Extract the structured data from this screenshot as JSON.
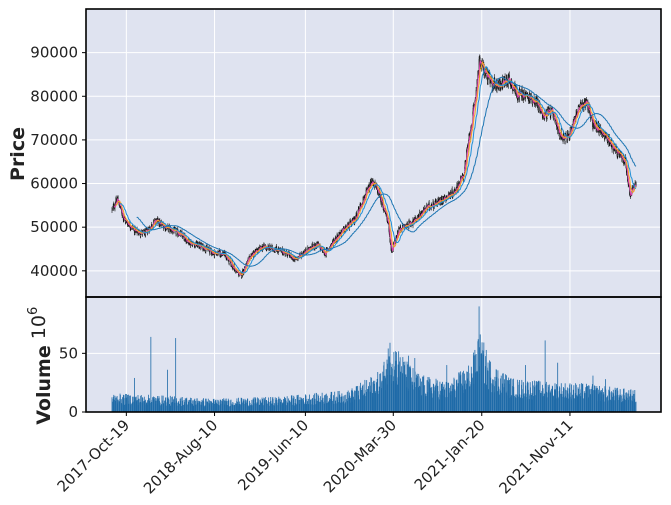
{
  "chart_data": [
    {
      "type": "candlestick",
      "panel": "price",
      "ylabel": "Price",
      "ylim": [
        34000,
        100000
      ],
      "yticks": [
        40000,
        50000,
        60000,
        70000,
        80000,
        90000
      ],
      "x_start": "2017-09-01",
      "x_end": "2022-06-20",
      "xticks": [
        "2017-Oct-19",
        "2018-Aug-10",
        "2019-Jun-10",
        "2020-Mar-30",
        "2021-Jan-20",
        "2021-Nov-11"
      ],
      "grid": true,
      "background": "#dfe3f0",
      "colors": {
        "up": "#ffffff",
        "down": "#111111",
        "ma_short": "#1f8fd6",
        "ma_mid": "#f6a623",
        "ma_fast": "#e63fb0",
        "ma_long": "#1f77b4"
      },
      "trend_points": [
        [
          "2017-09-01",
          54000
        ],
        [
          "2017-09-20",
          56500
        ],
        [
          "2017-10-10",
          52000
        ],
        [
          "2017-11-20",
          49000
        ],
        [
          "2017-12-20",
          48500
        ],
        [
          "2018-01-25",
          51500
        ],
        [
          "2018-03-01",
          50000
        ],
        [
          "2018-04-15",
          48500
        ],
        [
          "2018-05-20",
          46500
        ],
        [
          "2018-07-01",
          45500
        ],
        [
          "2018-08-10",
          44000
        ],
        [
          "2018-09-10",
          44000
        ],
        [
          "2018-10-20",
          40000
        ],
        [
          "2018-11-05",
          38800
        ],
        [
          "2018-12-10",
          43500
        ],
        [
          "2019-01-20",
          45500
        ],
        [
          "2019-03-01",
          45000
        ],
        [
          "2019-04-10",
          44000
        ],
        [
          "2019-05-05",
          42500
        ],
        [
          "2019-06-10",
          44500
        ],
        [
          "2019-07-20",
          46000
        ],
        [
          "2019-08-15",
          44000
        ],
        [
          "2019-09-20",
          47500
        ],
        [
          "2019-10-25",
          50000
        ],
        [
          "2019-11-20",
          51500
        ],
        [
          "2019-12-15",
          55500
        ],
        [
          "2020-01-20",
          60500
        ],
        [
          "2020-02-10",
          58000
        ],
        [
          "2020-03-10",
          52000
        ],
        [
          "2020-03-23",
          44500
        ],
        [
          "2020-04-20",
          49500
        ],
        [
          "2020-06-10",
          51500
        ],
        [
          "2020-07-20",
          54500
        ],
        [
          "2020-09-01",
          56000
        ],
        [
          "2020-10-20",
          58000
        ],
        [
          "2020-11-20",
          62000
        ],
        [
          "2020-12-10",
          71000
        ],
        [
          "2020-12-28",
          78500
        ],
        [
          "2021-01-11",
          88000
        ],
        [
          "2021-01-25",
          86500
        ],
        [
          "2021-02-20",
          83000
        ],
        [
          "2021-03-20",
          82500
        ],
        [
          "2021-04-20",
          84000
        ],
        [
          "2021-05-20",
          80500
        ],
        [
          "2021-06-20",
          80000
        ],
        [
          "2021-07-20",
          79000
        ],
        [
          "2021-08-15",
          75500
        ],
        [
          "2021-09-10",
          76500
        ],
        [
          "2021-10-10",
          71000
        ],
        [
          "2021-11-05",
          70500
        ],
        [
          "2021-12-05",
          76500
        ],
        [
          "2022-01-05",
          79000
        ],
        [
          "2022-01-28",
          73500
        ],
        [
          "2022-02-25",
          72000
        ],
        [
          "2022-03-20",
          70000
        ],
        [
          "2022-04-20",
          67000
        ],
        [
          "2022-05-15",
          65000
        ],
        [
          "2022-05-31",
          57000
        ],
        [
          "2022-06-10",
          59000
        ],
        [
          "2022-06-20",
          59500
        ]
      ]
    },
    {
      "type": "bar",
      "panel": "volume",
      "ylabel": "Volume",
      "scale_exponent": 6,
      "ylim": [
        0,
        98
      ],
      "yticks": [
        0,
        50
      ],
      "bar_color": "#1f6ba8",
      "baseline_points": [
        [
          "2017-09-01",
          11
        ],
        [
          "2018-02-01",
          10
        ],
        [
          "2018-08-01",
          8
        ],
        [
          "2019-03-01",
          9
        ],
        [
          "2019-11-01",
          13
        ],
        [
          "2020-02-20",
          25
        ],
        [
          "2020-03-20",
          45
        ],
        [
          "2020-05-15",
          30
        ],
        [
          "2020-07-01",
          22
        ],
        [
          "2020-10-01",
          18
        ],
        [
          "2020-12-15",
          30
        ],
        [
          "2021-01-12",
          48
        ],
        [
          "2021-02-20",
          30
        ],
        [
          "2021-05-01",
          20
        ],
        [
          "2021-09-01",
          18
        ],
        [
          "2022-01-01",
          17
        ],
        [
          "2022-06-20",
          13
        ]
      ],
      "spikes": [
        [
          "2018-01-09",
          64
        ],
        [
          "2018-04-02",
          63
        ],
        [
          "2018-03-06",
          36
        ],
        [
          "2017-11-15",
          29
        ],
        [
          "2020-03-19",
          59
        ],
        [
          "2020-05-20",
          48
        ],
        [
          "2020-06-10",
          46
        ],
        [
          "2020-09-25",
          40
        ],
        [
          "2021-01-11",
          90
        ],
        [
          "2021-01-08",
          62
        ],
        [
          "2021-06-15",
          40
        ],
        [
          "2021-08-20",
          61
        ],
        [
          "2021-10-01",
          42
        ],
        [
          "2022-01-27",
          31
        ],
        [
          "2022-03-10",
          28
        ]
      ]
    }
  ]
}
